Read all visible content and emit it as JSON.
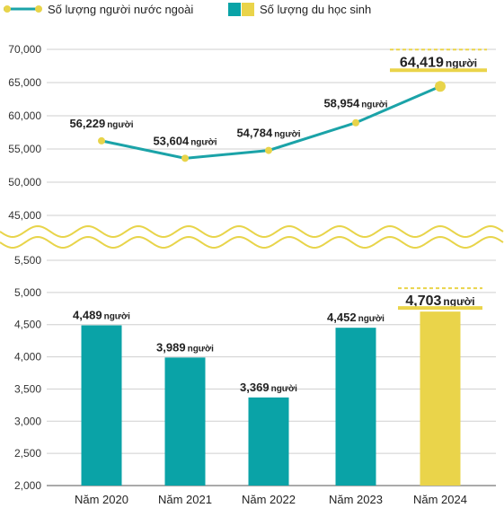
{
  "chart_data": {
    "type": "bar+line",
    "categories": [
      "Năm 2020",
      "Năm 2021",
      "Năm 2022",
      "Năm 2023",
      "Năm 2024"
    ],
    "legend": [
      {
        "name": "Số lượng người nước ngoài",
        "kind": "line",
        "color": "#1ba3a8",
        "marker_color": "#e8d44a"
      },
      {
        "name": "Số lượng du học sinh",
        "kind": "bar",
        "color": "#0aa3a7",
        "highlight_color": "#ead44a"
      }
    ],
    "line_series": {
      "name": "Số lượng người nước ngoài",
      "values": [
        56229,
        53604,
        54784,
        58954,
        64419
      ],
      "labels": [
        "56,229",
        "53,604",
        "54,784",
        "58,954",
        "64,419"
      ],
      "ylim": [
        45000,
        70000
      ],
      "ticks": [
        "45,000",
        "50,000",
        "55,000",
        "60,000",
        "65,000",
        "70,000"
      ],
      "tick_values": [
        45000,
        50000,
        55000,
        60000,
        65000,
        70000
      ]
    },
    "bar_series": {
      "name": "Số lượng du học sinh",
      "values": [
        4489,
        3989,
        3369,
        4452,
        4703
      ],
      "labels": [
        "4,489",
        "3,989",
        "3,369",
        "4,452",
        "4,703"
      ],
      "ylim": [
        2000,
        5500
      ],
      "ticks": [
        "2,000",
        "2,500",
        "3,000",
        "3,500",
        "4,000",
        "4,500",
        "5,000",
        "5,500"
      ],
      "tick_values": [
        2000,
        2500,
        3000,
        3500,
        4000,
        4500,
        5000,
        5500
      ]
    },
    "unit": "người",
    "highlight_index": 4,
    "axis_break": true,
    "grid": true
  },
  "colors": {
    "teal": "#0aa3a7",
    "yellow": "#ead44a",
    "grid": "#cfcfcf"
  }
}
